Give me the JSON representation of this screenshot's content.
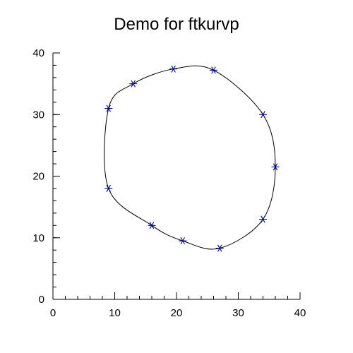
{
  "chart_data": {
    "type": "scatter",
    "title": "Demo for ftkurvp",
    "xlabel": "",
    "ylabel": "",
    "xlim": [
      0,
      40
    ],
    "ylim": [
      0,
      40
    ],
    "x_ticks": [
      0,
      10,
      20,
      30,
      40
    ],
    "y_ticks": [
      0,
      10,
      20,
      30,
      40
    ],
    "x_tick_labels": [
      "0",
      "10",
      "20",
      "30",
      "40"
    ],
    "y_tick_labels": [
      "0",
      "10",
      "20",
      "30",
      "40"
    ],
    "minor_ticks_per_major": 5,
    "grid": false,
    "curve": "closed periodic smooth curve through points",
    "marker": "asterisk",
    "colors": {
      "marker": "#00008b",
      "curve": "#000000",
      "axes": "#000000"
    },
    "points": [
      {
        "x": 9,
        "y": 18
      },
      {
        "x": 16,
        "y": 12
      },
      {
        "x": 21,
        "y": 9.5
      },
      {
        "x": 27,
        "y": 8.3
      },
      {
        "x": 34,
        "y": 13
      },
      {
        "x": 36,
        "y": 21.5
      },
      {
        "x": 34,
        "y": 30
      },
      {
        "x": 26,
        "y": 37.2
      },
      {
        "x": 19.5,
        "y": 37.4
      },
      {
        "x": 13,
        "y": 35
      },
      {
        "x": 9,
        "y": 31
      }
    ]
  }
}
